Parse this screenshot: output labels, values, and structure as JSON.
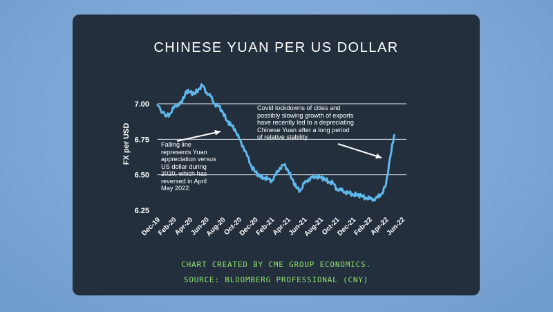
{
  "chart_data": {
    "type": "line",
    "title": "CHINESE YUAN PER US DOLLAR",
    "ylabel": "FX per USD",
    "xlabel": "",
    "ylim": [
      6.25,
      7.2
    ],
    "yticks": [
      7.0,
      6.75,
      6.5,
      6.25
    ],
    "ytick_labels": [
      "7.00",
      "6.75",
      "6.50",
      "6.25"
    ],
    "xtick_labels": [
      "Dec-19",
      "Feb-20",
      "Apr-20",
      "Jun-20",
      "Aug-20",
      "Oct-20",
      "Dec-20",
      "Feb-21",
      "Apr-21",
      "Jun-21",
      "Aug-21",
      "Oct-21",
      "Dec-21",
      "Feb-22",
      "Apr-22",
      "Jun-22"
    ],
    "grid": "horizontal",
    "line_color": "#5fb8ec",
    "series": [
      {
        "x": [
          "2019-12",
          "2020-01",
          "2020-01",
          "2020-02",
          "2020-02",
          "2020-03",
          "2020-03",
          "2020-04",
          "2020-04",
          "2020-05",
          "2020-05",
          "2020-06",
          "2020-06",
          "2020-07",
          "2020-07",
          "2020-08",
          "2020-08",
          "2020-09",
          "2020-09",
          "2020-10",
          "2020-10",
          "2020-11",
          "2020-11",
          "2020-12",
          "2020-12",
          "2021-01",
          "2021-01",
          "2021-02",
          "2021-02",
          "2021-03",
          "2021-03",
          "2021-04",
          "2021-04",
          "2021-05",
          "2021-05",
          "2021-06",
          "2021-06",
          "2021-07",
          "2021-07",
          "2021-08",
          "2021-08",
          "2021-09",
          "2021-09",
          "2021-10",
          "2021-10",
          "2021-11",
          "2021-11",
          "2021-12",
          "2021-12",
          "2022-01",
          "2022-01",
          "2022-02",
          "2022-02",
          "2022-03",
          "2022-03",
          "2022-04",
          "2022-04",
          "2022-05"
        ],
        "values": [
          6.99,
          6.91,
          6.93,
          6.97,
          7.0,
          7.01,
          7.09,
          7.08,
          7.07,
          7.1,
          7.13,
          7.08,
          7.05,
          7.0,
          6.98,
          6.94,
          6.88,
          6.85,
          6.82,
          6.75,
          6.7,
          6.63,
          6.56,
          6.52,
          6.49,
          6.48,
          6.47,
          6.46,
          6.5,
          6.55,
          6.57,
          6.53,
          6.47,
          6.41,
          6.39,
          6.44,
          6.47,
          6.48,
          6.49,
          6.48,
          6.47,
          6.45,
          6.44,
          6.4,
          6.39,
          6.38,
          6.37,
          6.36,
          6.36,
          6.35,
          6.34,
          6.33,
          6.33,
          6.34,
          6.37,
          6.43,
          6.62,
          6.78
        ]
      }
    ],
    "annotations": [
      "Covid lockdowns of cities and possibly slowing growth of exports have recently led to a depreciating Chinese Yuan after a long period of relative stability.",
      "Falling line represents Yuan appreciation versus US dollar during 2020, which has reversed in April May 2022."
    ]
  },
  "footer": {
    "line1": "CHART CREATED BY CME GROUP ECONOMICS.",
    "line2": "SOURCE: BLOOMBERG PROFESSIONAL (CNY)"
  }
}
